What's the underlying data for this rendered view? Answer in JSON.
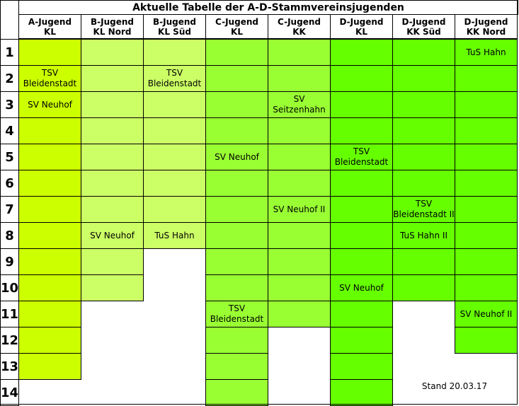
{
  "title": "Aktuelle Tabelle der A-D-Stammvereinsjugenden",
  "stand": "Stand 20.03.17",
  "row_labels": [
    "1",
    "2",
    "3",
    "4",
    "5",
    "6",
    "7",
    "8",
    "9",
    "10",
    "11",
    "12",
    "13",
    "14"
  ],
  "columns": [
    {
      "line1": "A-Jugend",
      "line2": "KL",
      "color": "#ccff00",
      "rows": 13,
      "cells": {
        "2": "TSV\nBleidenstadt",
        "3": "SV Neuhof"
      }
    },
    {
      "line1": "B-Jugend",
      "line2": "KL Nord",
      "color": "#ccff66",
      "rows": 10,
      "cells": {
        "8": "SV Neuhof"
      }
    },
    {
      "line1": "B-Jugend",
      "line2": "KL Süd",
      "color": "#ccff66",
      "rows": 8,
      "cells": {
        "2": "TSV\nBleidenstadt",
        "8": "TuS Hahn"
      }
    },
    {
      "line1": "C-Jugend",
      "line2": "KL",
      "color": "#99ff33",
      "rows": 14,
      "cells": {
        "5": "SV Neuhof",
        "11": "TSV\nBleidenstadt"
      }
    },
    {
      "line1": "C-Jugend",
      "line2": "KK",
      "color": "#99ff33",
      "rows": 11,
      "cells": {
        "3": "SV\nSeitzenhahn",
        "7": "SV Neuhof II"
      }
    },
    {
      "line1": "D-Jugend",
      "line2": "KL",
      "color": "#66ff00",
      "rows": 14,
      "cells": {
        "5": "TSV\nBleidenstadt",
        "10": "SV Neuhof"
      }
    },
    {
      "line1": "D-Jugend",
      "line2": "KK Süd",
      "color": "#66ff00",
      "rows": 10,
      "cells": {
        "7": "TSV\nBleidenstadt II",
        "8": "TuS Hahn II"
      }
    },
    {
      "line1": "D-Jugend",
      "line2": "KK Nord",
      "color": "#66ff00",
      "rows": 12,
      "cells": {
        "1": "TuS Hahn",
        "11": "SV Neuhof II"
      }
    }
  ]
}
